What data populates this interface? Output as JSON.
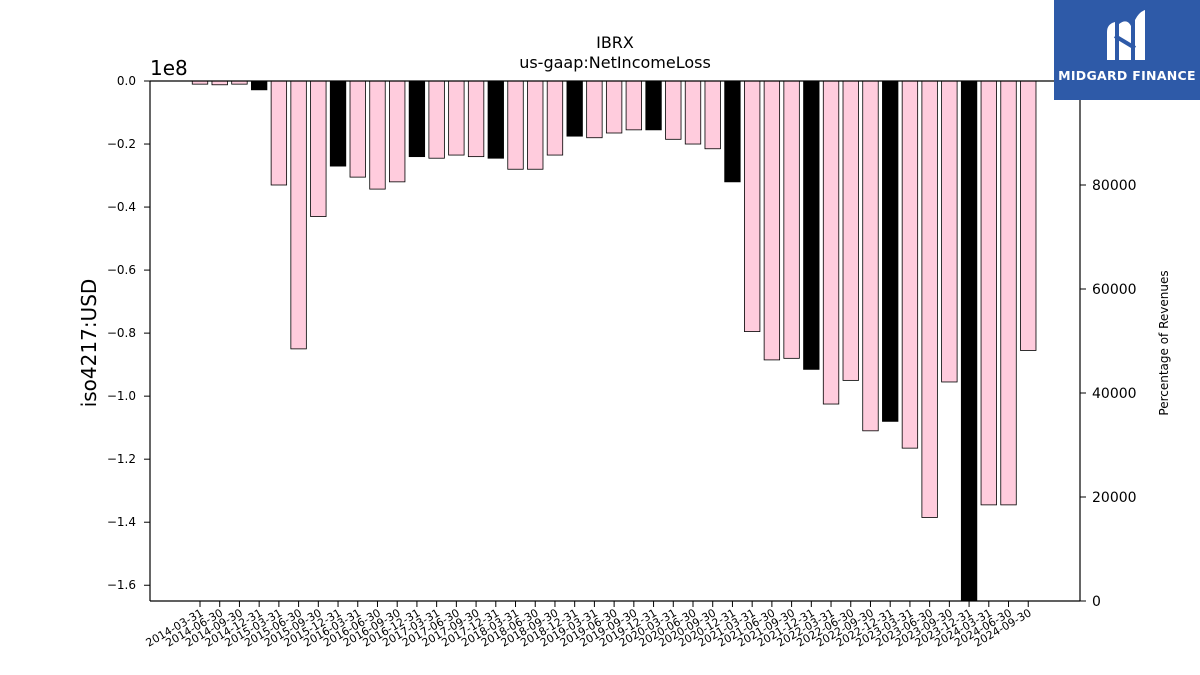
{
  "chart_data": {
    "type": "bar",
    "title": "IBRX",
    "subtitle": "us-gaap:NetIncomeLoss",
    "ylabel": "iso4217:USD",
    "y2label": "Percentage of Revenues",
    "offset_label": "1e8",
    "ylim": [
      -1.65,
      0
    ],
    "y2lim": [
      0,
      100000
    ],
    "yticks": [
      "0.0",
      "−0.2",
      "−0.4",
      "−0.6",
      "−0.8",
      "−1.0",
      "−1.2",
      "−1.4",
      "−1.6"
    ],
    "ytick_values": [
      0,
      -0.2,
      -0.4,
      -0.6,
      -0.8,
      -1.0,
      -1.2,
      -1.4,
      -1.6
    ],
    "y2ticks": [
      "0",
      "20000",
      "40000",
      "60000",
      "80000"
    ],
    "y2tick_values": [
      0,
      20000,
      40000,
      60000,
      80000
    ],
    "bar_colors": {
      "quarter": "#ffccdd",
      "annual": "#000000"
    },
    "categories": [
      "2014-03-31",
      "2014-06-30",
      "2014-09-30",
      "2014-12-31",
      "2015-03-31",
      "2015-06-30",
      "2015-09-30",
      "2015-12-31",
      "2016-03-31",
      "2016-06-30",
      "2016-09-30",
      "2016-12-31",
      "2017-03-31",
      "2017-06-30",
      "2017-09-30",
      "2017-12-31",
      "2018-03-31",
      "2018-06-30",
      "2018-09-30",
      "2018-12-31",
      "2019-03-31",
      "2019-06-30",
      "2019-09-30",
      "2019-12-31",
      "2020-03-31",
      "2020-06-30",
      "2020-09-30",
      "2020-12-31",
      "2021-03-31",
      "2021-06-30",
      "2021-09-30",
      "2021-12-31",
      "2022-03-31",
      "2022-06-30",
      "2022-09-30",
      "2022-12-31",
      "2023-03-31",
      "2023-06-30",
      "2023-09-30",
      "2023-12-31",
      "2024-03-31",
      "2024-06-30",
      "2024-09-30"
    ],
    "values": [
      -0.01,
      -0.012,
      -0.01,
      -0.028,
      -0.33,
      -0.85,
      -0.43,
      -0.27,
      -0.305,
      -0.343,
      -0.32,
      -0.24,
      -0.245,
      -0.235,
      -0.24,
      -0.245,
      -0.28,
      -0.28,
      -0.235,
      -0.175,
      -0.18,
      -0.165,
      -0.155,
      -0.155,
      -0.185,
      -0.2,
      -0.215,
      -0.32,
      -0.795,
      -0.885,
      -0.88,
      -0.915,
      -1.025,
      -0.95,
      -1.11,
      -1.08,
      -1.165,
      -1.385,
      -0.955,
      -1.65,
      -1.345,
      -1.345,
      -0.855
    ],
    "annual": [
      false,
      false,
      false,
      true,
      false,
      false,
      false,
      true,
      false,
      false,
      false,
      true,
      false,
      false,
      false,
      true,
      false,
      false,
      false,
      true,
      false,
      false,
      false,
      true,
      false,
      false,
      false,
      true,
      false,
      false,
      false,
      true,
      false,
      false,
      false,
      true,
      false,
      false,
      false,
      true,
      false,
      false,
      false
    ]
  },
  "logo": {
    "brand": "MIDGARD FINANCE"
  }
}
